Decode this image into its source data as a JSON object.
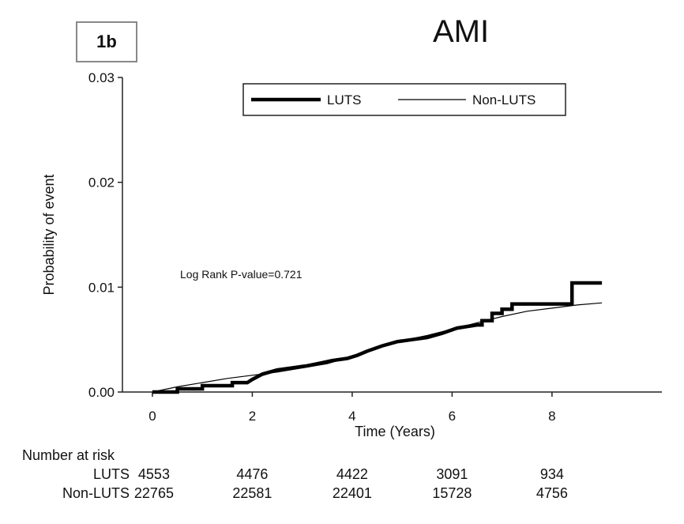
{
  "panel_label": "1b",
  "chart_data": {
    "type": "line",
    "title": "AMI",
    "xlabel": "Time (Years)",
    "ylabel": "Probability of event",
    "xlim": [
      -0.6,
      10.2
    ],
    "ylim": [
      0,
      0.03
    ],
    "x_ticks": [
      0,
      2,
      4,
      6,
      8
    ],
    "y_ticks": [
      0.0,
      0.01,
      0.02,
      0.03
    ],
    "y_tick_labels": [
      "0.00",
      "0.01",
      "0.02",
      "0.03"
    ],
    "legend_position": "top-right",
    "annotation": "Log Rank P-value=0.721",
    "series": [
      {
        "name": "LUTS",
        "line": "thick",
        "points": [
          [
            0,
            0
          ],
          [
            0.5,
            0
          ],
          [
            0.5,
            0.0003
          ],
          [
            1.0,
            0.0003
          ],
          [
            1.0,
            0.0006
          ],
          [
            1.6,
            0.0006
          ],
          [
            1.6,
            0.0009
          ],
          [
            1.9,
            0.0009
          ],
          [
            2.0,
            0.0012
          ],
          [
            2.2,
            0.0017
          ],
          [
            2.5,
            0.0021
          ],
          [
            2.8,
            0.0023
          ],
          [
            3.1,
            0.0025
          ],
          [
            3.4,
            0.0028
          ],
          [
            3.6,
            0.003
          ],
          [
            3.9,
            0.0032
          ],
          [
            4.1,
            0.0035
          ],
          [
            4.3,
            0.0039
          ],
          [
            4.6,
            0.0044
          ],
          [
            4.9,
            0.0048
          ],
          [
            5.2,
            0.005
          ],
          [
            5.5,
            0.0052
          ],
          [
            5.8,
            0.0056
          ],
          [
            6.1,
            0.0061
          ],
          [
            6.5,
            0.0064
          ],
          [
            6.6,
            0.0064
          ],
          [
            6.6,
            0.0068
          ],
          [
            6.8,
            0.0068
          ],
          [
            6.8,
            0.0075
          ],
          [
            7.0,
            0.0075
          ],
          [
            7.0,
            0.0079
          ],
          [
            7.2,
            0.0079
          ],
          [
            7.2,
            0.0084
          ],
          [
            8.4,
            0.0084
          ],
          [
            8.4,
            0.0104
          ],
          [
            9.0,
            0.0104
          ]
        ]
      },
      {
        "name": "Non-LUTS",
        "line": "thin",
        "points": [
          [
            0,
            0
          ],
          [
            0.5,
            0.0005
          ],
          [
            1.0,
            0.0009
          ],
          [
            1.5,
            0.0013
          ],
          [
            2.0,
            0.0016
          ],
          [
            2.5,
            0.0019
          ],
          [
            3.0,
            0.0023
          ],
          [
            3.5,
            0.0027
          ],
          [
            4.0,
            0.0034
          ],
          [
            4.5,
            0.0042
          ],
          [
            5.0,
            0.0049
          ],
          [
            5.5,
            0.0054
          ],
          [
            6.0,
            0.006
          ],
          [
            6.5,
            0.0066
          ],
          [
            7.0,
            0.0072
          ],
          [
            7.5,
            0.0077
          ],
          [
            8.0,
            0.008
          ],
          [
            8.5,
            0.0083
          ],
          [
            9.0,
            0.0085
          ]
        ]
      }
    ],
    "risk_table": {
      "header": "Number at risk",
      "x": [
        0,
        2,
        4,
        6,
        8
      ],
      "rows": [
        {
          "label": "LUTS",
          "values": [
            "4553",
            "4476",
            "4422",
            "3091",
            "934"
          ]
        },
        {
          "label": "Non-LUTS",
          "values": [
            "22765",
            "22581",
            "22401",
            "15728",
            "4756"
          ]
        }
      ]
    }
  }
}
